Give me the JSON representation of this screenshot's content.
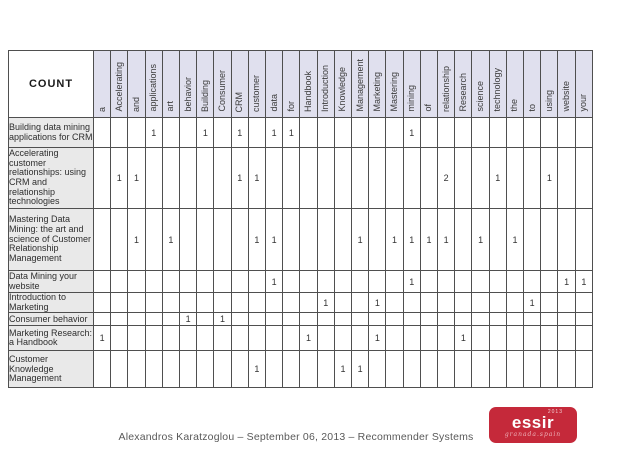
{
  "table": {
    "corner_label": "COUNT",
    "columns": [
      "a",
      "Accelerating",
      "and",
      "applications",
      "art",
      "behavior",
      "Building",
      "Consumer",
      "CRM",
      "customer",
      "data",
      "for",
      "Handbook",
      "Introduction",
      "Knowledge",
      "Management",
      "Marketing",
      "Mastering",
      "mining",
      "of",
      "relationship",
      "Research",
      "science",
      "technology",
      "the",
      "to",
      "using",
      "website",
      "your"
    ],
    "rows": [
      {
        "label": "Building data mining applications for CRM",
        "values": [
          "",
          "",
          "",
          "1",
          "",
          "",
          "1",
          "",
          "1",
          "",
          "1",
          "1",
          "",
          "",
          "",
          "",
          "",
          "",
          "1",
          "",
          "",
          "",
          "",
          "",
          "",
          "",
          "",
          "",
          ""
        ]
      },
      {
        "label": "Accelerating customer relationships: using CRM and relationship technologies",
        "values": [
          "",
          "1",
          "1",
          "",
          "",
          "",
          "",
          "",
          "1",
          "1",
          "",
          "",
          "",
          "",
          "",
          "",
          "",
          "",
          "",
          "",
          "2",
          "",
          "",
          "1",
          "",
          "",
          "1",
          "",
          ""
        ]
      },
      {
        "label": "Mastering Data Mining: the art and science of Customer Relationship Management",
        "values": [
          "",
          "",
          "1",
          "",
          "1",
          "",
          "",
          "",
          "",
          "1",
          "1",
          "",
          "",
          "",
          "",
          "1",
          "",
          "1",
          "1",
          "1",
          "1",
          "",
          "1",
          "",
          "1",
          "",
          "",
          "",
          ""
        ]
      },
      {
        "label": "Data Mining your website",
        "values": [
          "",
          "",
          "",
          "",
          "",
          "",
          "",
          "",
          "",
          "",
          "1",
          "",
          "",
          "",
          "",
          "",
          "",
          "",
          "1",
          "",
          "",
          "",
          "",
          "",
          "",
          "",
          "",
          "1",
          "1"
        ]
      },
      {
        "label": "Introduction to Marketing",
        "values": [
          "",
          "",
          "",
          "",
          "",
          "",
          "",
          "",
          "",
          "",
          "",
          "",
          "",
          "1",
          "",
          "",
          "1",
          "",
          "",
          "",
          "",
          "",
          "",
          "",
          "",
          "1",
          "",
          "",
          ""
        ]
      },
      {
        "label": "Consumer behavior",
        "values": [
          "",
          "",
          "",
          "",
          "",
          "1",
          "",
          "1",
          "",
          "",
          "",
          "",
          "",
          "",
          "",
          "",
          "",
          "",
          "",
          "",
          "",
          "",
          "",
          "",
          "",
          "",
          "",
          "",
          ""
        ]
      },
      {
        "label": "Marketing Research: a Handbook",
        "values": [
          "1",
          "",
          "",
          "",
          "",
          "",
          "",
          "",
          "",
          "",
          "",
          "",
          "1",
          "",
          "",
          "",
          "1",
          "",
          "",
          "",
          "",
          "1",
          "",
          "",
          "",
          "",
          "",
          "",
          ""
        ]
      },
      {
        "label": "Customer Knowledge Management",
        "values": [
          "",
          "",
          "",
          "",
          "",
          "",
          "",
          "",
          "",
          "1",
          "",
          "",
          "",
          "",
          "1",
          "1",
          "",
          "",
          "",
          "",
          "",
          "",
          "",
          "",
          "",
          "",
          "",
          "",
          ""
        ]
      }
    ]
  },
  "footer": {
    "credit": "Alexandros Karatzoglou – September 06, 2013 – Recommender Systems"
  },
  "logo": {
    "name": "essir",
    "year": "2013",
    "subtitle": "granada.spain"
  },
  "colors": {
    "header_bg": "#e0e0ee",
    "row_label_bg": "#e9e9e9",
    "border": "#4f4f4f",
    "logo_bg": "#c5293a"
  }
}
